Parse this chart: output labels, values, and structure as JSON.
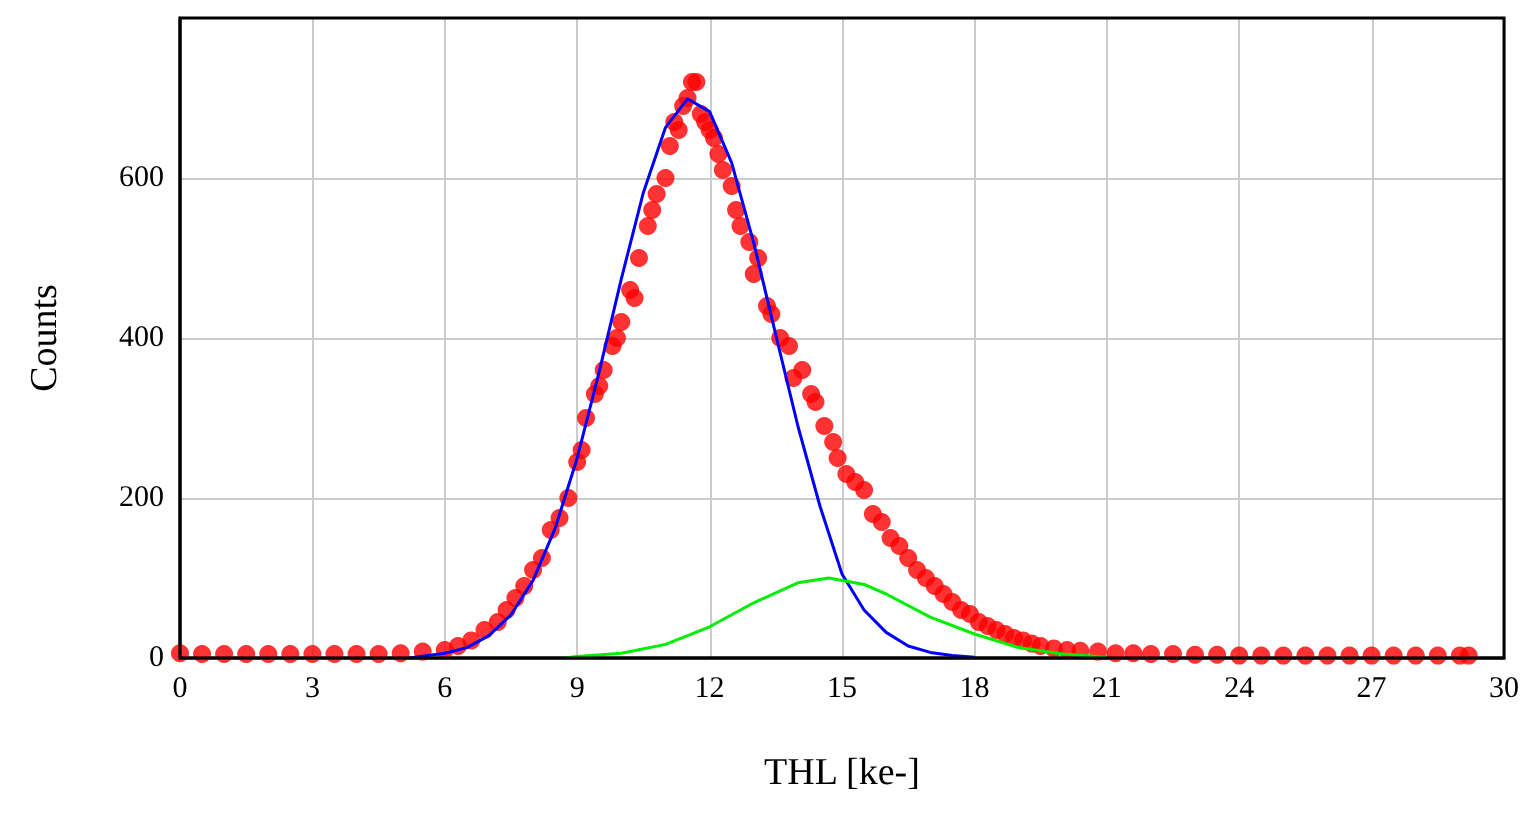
{
  "chart_data": {
    "type": "scatter",
    "xlabel": "THL [ke-]",
    "ylabel": "Counts",
    "xlim": [
      0,
      30
    ],
    "xticks": [
      0,
      3,
      6,
      9,
      12,
      15,
      18,
      21,
      24,
      27,
      30
    ],
    "ylim": [
      0,
      800
    ],
    "yticks": [
      0,
      200,
      400,
      600
    ],
    "grid": true,
    "series": [
      {
        "color": "#ff0000",
        "marker": "circle",
        "x": [
          0,
          0.5,
          1,
          1.5,
          2,
          2.5,
          3,
          3.5,
          4,
          4.5,
          5,
          5.5,
          6,
          6.3,
          6.6,
          6.9,
          7.2,
          7.4,
          7.6,
          7.8,
          8,
          8.2,
          8.4,
          8.6,
          8.8,
          9,
          9.1,
          9.2,
          9.4,
          9.5,
          9.6,
          9.8,
          9.9,
          10,
          10.2,
          10.3,
          10.4,
          10.6,
          10.7,
          10.8,
          11,
          11.1,
          11.2,
          11.3,
          11.4,
          11.5,
          11.6,
          11.7,
          11.8,
          11.9,
          12,
          12.1,
          12.2,
          12.3,
          12.5,
          12.6,
          12.7,
          12.9,
          13,
          13.1,
          13.3,
          13.4,
          13.6,
          13.8,
          13.9,
          14.1,
          14.3,
          14.4,
          14.6,
          14.8,
          14.9,
          15.1,
          15.3,
          15.5,
          15.7,
          15.9,
          16.1,
          16.3,
          16.5,
          16.7,
          16.9,
          17.1,
          17.3,
          17.5,
          17.7,
          17.9,
          18.1,
          18.3,
          18.5,
          18.7,
          18.9,
          19.1,
          19.3,
          19.5,
          19.8,
          20.1,
          20.4,
          20.8,
          21.2,
          21.6,
          22,
          22.5,
          23,
          23.5,
          24,
          24.5,
          25,
          25.5,
          26,
          26.5,
          27,
          27.5,
          28,
          28.5,
          29,
          29.2
        ],
        "values": [
          6,
          5,
          5,
          5,
          5,
          5,
          5,
          5,
          5,
          5,
          6,
          8,
          10,
          15,
          22,
          35,
          45,
          60,
          75,
          90,
          110,
          125,
          160,
          175,
          200,
          245,
          260,
          300,
          330,
          340,
          360,
          390,
          400,
          420,
          460,
          450,
          500,
          540,
          560,
          580,
          600,
          640,
          670,
          660,
          690,
          700,
          720,
          720,
          680,
          670,
          660,
          650,
          630,
          610,
          590,
          560,
          540,
          520,
          480,
          500,
          440,
          430,
          400,
          390,
          350,
          360,
          330,
          320,
          290,
          270,
          250,
          230,
          220,
          210,
          180,
          170,
          150,
          140,
          125,
          110,
          100,
          90,
          80,
          70,
          60,
          55,
          45,
          40,
          35,
          30,
          25,
          22,
          18,
          15,
          12,
          10,
          9,
          8,
          6,
          6,
          5,
          5,
          4,
          4,
          3,
          3,
          3,
          3,
          3,
          3,
          3,
          3,
          3,
          3,
          3,
          3
        ]
      },
      {
        "type": "line",
        "color": "#0000ff",
        "marker": "none",
        "x": [
          5.2,
          6,
          6.5,
          7,
          7.5,
          8,
          8.5,
          9,
          9.5,
          10,
          10.5,
          11,
          11.5,
          12,
          12.5,
          13,
          13.5,
          14,
          14.5,
          15,
          15.5,
          16,
          16.5,
          17,
          17.5,
          18
        ],
        "values": [
          0,
          6,
          13,
          28,
          54,
          97,
          162,
          250,
          358,
          474,
          582,
          663,
          699,
          683,
          619,
          519,
          404,
          290,
          190,
          105,
          60,
          32,
          15,
          7,
          3,
          1
        ]
      },
      {
        "type": "line",
        "color": "#00ee00",
        "marker": "none",
        "x": [
          8.7,
          9,
          10,
          11,
          12,
          13,
          14,
          14.7,
          15.5,
          16,
          17,
          18,
          19,
          20,
          21
        ],
        "values": [
          0,
          2,
          6,
          17,
          39,
          69,
          94,
          100,
          92,
          80,
          51,
          30,
          13,
          5,
          1
        ]
      }
    ]
  }
}
